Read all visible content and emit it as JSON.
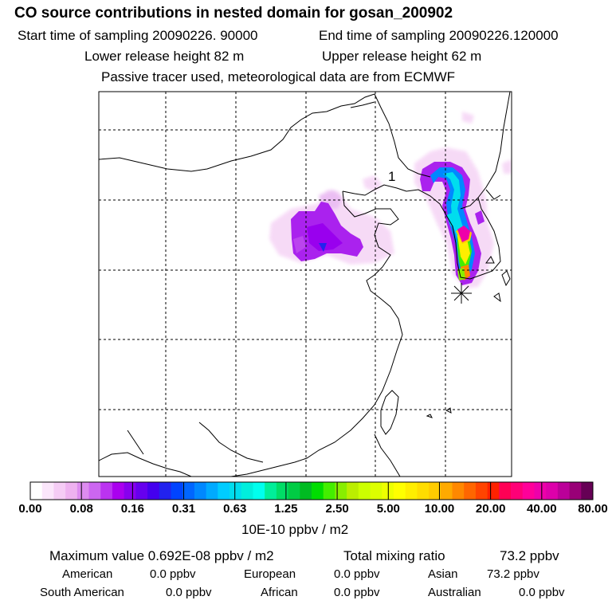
{
  "header": {
    "title": "CO  source contributions in nested domain for gosan_200902",
    "start_time": "Start time of sampling 20090226. 90000",
    "end_time": "End time of sampling 20090226.120000",
    "lower_release": "Lower release height   82 m",
    "upper_release": "Upper release height   62 m",
    "tracer_note": "Passive tracer used, meteorological data are from ECMWF"
  },
  "chart_data": {
    "type": "heatmap",
    "map_annotation": "1",
    "colorbar": {
      "tick_labels": [
        "0.00",
        "0.08",
        "0.16",
        "0.31",
        "0.63",
        "1.25",
        "2.50",
        "5.00",
        "10.00",
        "20.00",
        "40.00",
        "80.00"
      ],
      "unit_label": "10E-10 ppbv / m2",
      "colors": [
        "#ffffff",
        "#fbe6fb",
        "#f5ccf5",
        "#eeb2f0",
        "#dd8cf0",
        "#cc66f0",
        "#bb33f0",
        "#aa00ee",
        "#8800ee",
        "#6600ee",
        "#4400ee",
        "#2222ee",
        "#0044ff",
        "#0066ff",
        "#0088ff",
        "#00aaff",
        "#00ccff",
        "#00ddee",
        "#00eedd",
        "#00ffee",
        "#00ee99",
        "#00dd66",
        "#00cc44",
        "#00bb22",
        "#00dd00",
        "#44ee00",
        "#88ee00",
        "#bbee00",
        "#ccff00",
        "#ddff00",
        "#eeff00",
        "#ffff00",
        "#ffee00",
        "#ffdd00",
        "#ffcc00",
        "#ffaa00",
        "#ff8800",
        "#ff6600",
        "#ff4400",
        "#ff2200",
        "#ff0055",
        "#ff0077",
        "#ff0099",
        "#ee00aa",
        "#dd00aa",
        "#bb0099",
        "#990077",
        "#660055"
      ]
    }
  },
  "summary": {
    "max_label": "Maximum value  0.692E-08 ppbv / m2",
    "total_label": "Total mixing ratio",
    "total_value": "73.2 ppbv",
    "american_label": "American",
    "american_value": "0.0 ppbv",
    "european_label": "European",
    "european_value": "0.0 ppbv",
    "asian_label": "Asian",
    "asian_value": "73.2 ppbv",
    "south_american_label": "South American",
    "south_american_value": "0.0 ppbv",
    "african_label": "African",
    "african_value": "0.0 ppbv",
    "australian_label": "Australian",
    "australian_value": "0.0 ppbv"
  }
}
